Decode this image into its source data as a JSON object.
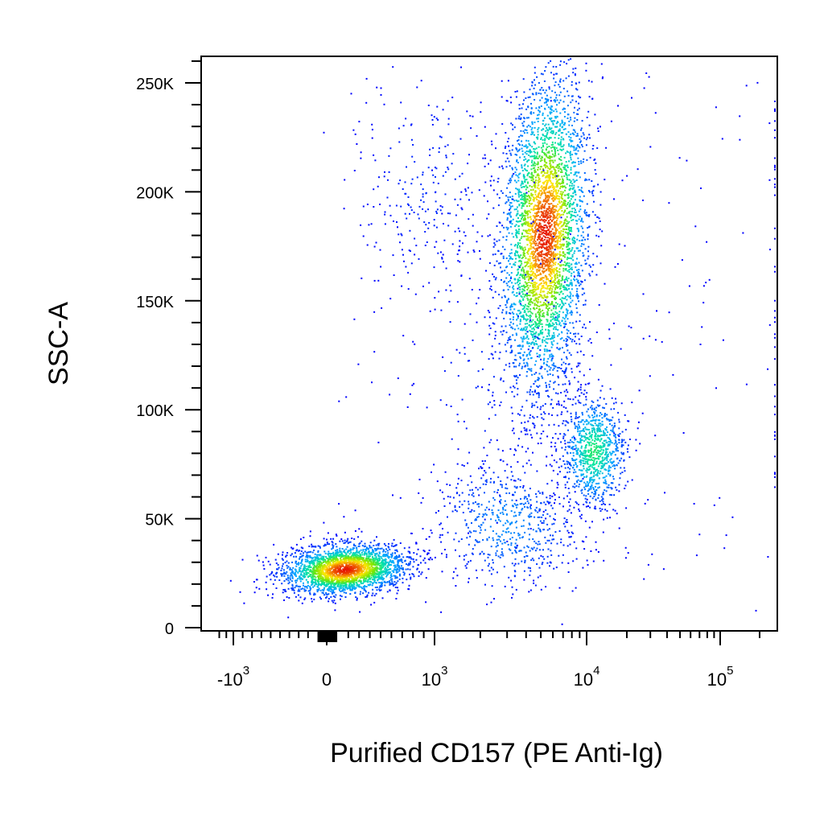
{
  "chart_data": {
    "type": "scatter",
    "title": "",
    "xlabel": "Purified CD157 (PE Anti-Ig)",
    "ylabel": "SSC-A",
    "x_scale": "biexponential",
    "xlim": [
      -1400,
      180000
    ],
    "ylim": [
      -3000,
      262144
    ],
    "y_ticks": [
      {
        "value": 0,
        "label": "0"
      },
      {
        "value": 50000,
        "label": "50K"
      },
      {
        "value": 100000,
        "label": "100K"
      },
      {
        "value": 150000,
        "label": "150K"
      },
      {
        "value": 200000,
        "label": "200K"
      },
      {
        "value": 250000,
        "label": "250K"
      }
    ],
    "x_ticks": [
      {
        "value": -1000,
        "base": "-10",
        "exp": "3"
      },
      {
        "value": 0,
        "base": "0",
        "exp": ""
      },
      {
        "value": 1000,
        "base": "10",
        "exp": "3"
      },
      {
        "value": 10000,
        "base": "10",
        "exp": "4"
      },
      {
        "value": 100000,
        "base": "10",
        "exp": "5"
      }
    ],
    "color_scale": "density (blue-cyan-green-yellow-red)",
    "populations": [
      {
        "name": "",
        "x_center": 120,
        "y_center": 27000,
        "density": "high"
      },
      {
        "name": "",
        "x_center": 4500,
        "y_center": 175000,
        "density": "high"
      },
      {
        "name": "",
        "x_center": 11500,
        "y_center": 82000,
        "density": "medium"
      },
      {
        "name": "",
        "x_center": 2600,
        "y_center": 45000,
        "density": "low"
      }
    ]
  }
}
